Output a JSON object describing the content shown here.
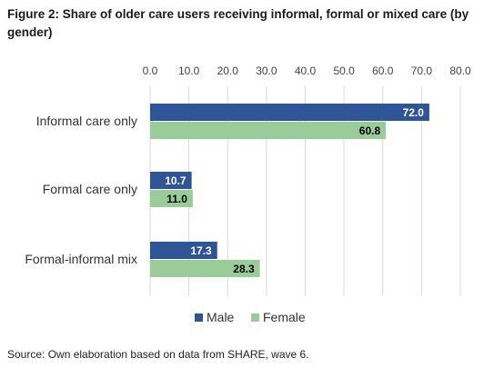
{
  "title": "Figure 2: Share of older care users receiving informal, formal or mixed care (by gender)",
  "source": "Source: Own elaboration based on data from SHARE, wave 6.",
  "chart_data": {
    "type": "bar",
    "orientation": "horizontal",
    "categories": [
      "Informal care only",
      "Formal care only",
      "Formal-informal mix"
    ],
    "series": [
      {
        "name": "Male",
        "color": "#2f5597",
        "values": [
          72.0,
          10.7,
          17.3
        ]
      },
      {
        "name": "Female",
        "color": "#99cc99",
        "values": [
          60.8,
          11.0,
          28.3
        ]
      }
    ],
    "xlim": [
      0,
      80
    ],
    "ticks": [
      "0.0",
      "10.0",
      "20.0",
      "30.0",
      "40.0",
      "50.0",
      "60.0",
      "70.0",
      "80.0"
    ],
    "tick_values": [
      0,
      10,
      20,
      30,
      40,
      50,
      60,
      70,
      80
    ],
    "data_labels": [
      [
        "72.0",
        "10.7",
        "17.3"
      ],
      [
        "60.8",
        "11.0",
        "28.3"
      ]
    ],
    "legend_position": "bottom",
    "grid": true,
    "axis_position": "top"
  }
}
